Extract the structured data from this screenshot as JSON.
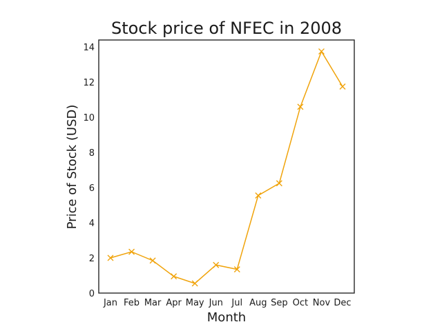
{
  "chart_data": {
    "type": "line",
    "title": "Stock price of NFEC in 2008",
    "xlabel": "Month",
    "ylabel": "Price of Stock (USD)",
    "categories": [
      "Jan",
      "Feb",
      "Mar",
      "Apr",
      "May",
      "Jun",
      "Jul",
      "Aug",
      "Sep",
      "Oct",
      "Nov",
      "Dec"
    ],
    "series": [
      {
        "values": [
          2.0,
          2.35,
          1.85,
          0.95,
          0.55,
          1.6,
          1.35,
          5.55,
          6.25,
          10.6,
          13.75,
          11.75
        ],
        "color": "#f0a30a",
        "marker": "x"
      }
    ],
    "ylim": [
      0,
      14.4
    ],
    "yticks": [
      0,
      2,
      4,
      6,
      8,
      10,
      12,
      14
    ],
    "grid": false,
    "legend": "none"
  }
}
